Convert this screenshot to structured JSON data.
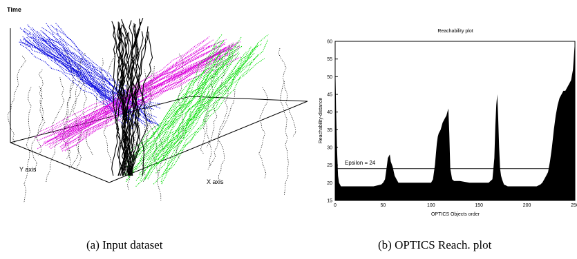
{
  "chart_data": [
    {
      "type": "line",
      "projection": "3d",
      "axis_labels": {
        "z": "Time",
        "x": "X axis",
        "y": "Y axis"
      },
      "caption": "(a) Input dataset",
      "legend": "none",
      "grid": false,
      "series": [
        {
          "color": "#0000dd",
          "style": "dotted"
        },
        {
          "color": "#dd00dd",
          "style": "dotted"
        },
        {
          "color": "#00dd00",
          "style": "dotted"
        },
        {
          "color": "#000000",
          "style": "solid"
        },
        {
          "color": "#000000",
          "style": "dotted"
        }
      ]
    },
    {
      "type": "area",
      "title": "Reachability plot",
      "xlabel": "OPTICS Objects order",
      "ylabel": "Reachability-distance",
      "xlim": [
        0,
        250
      ],
      "ylim": [
        15,
        60
      ],
      "xticks": [
        "0",
        "50",
        "100",
        "150",
        "200",
        "250"
      ],
      "yticks": [
        "15",
        "20",
        "25",
        "30",
        "35",
        "40",
        "45",
        "50",
        "55",
        "60"
      ],
      "threshold": {
        "label": "Epsilon = 24",
        "value": 24
      },
      "caption": "(b) OPTICS Reach. plot",
      "x": [
        0,
        1,
        2,
        3,
        4,
        6,
        10,
        20,
        30,
        40,
        48,
        50,
        52,
        54,
        55,
        56,
        57,
        58,
        60,
        62,
        64,
        66,
        70,
        80,
        90,
        100,
        102,
        104,
        106,
        107,
        108,
        110,
        112,
        114,
        116,
        117,
        118,
        119,
        120,
        122,
        124,
        130,
        140,
        150,
        160,
        164,
        166,
        167,
        168,
        169,
        170,
        171,
        172,
        173,
        174,
        176,
        180,
        190,
        200,
        210,
        214,
        216,
        218,
        220,
        222,
        224,
        226,
        228,
        230,
        232,
        234,
        236,
        238,
        240,
        242,
        244,
        246,
        248,
        249,
        250
      ],
      "y": [
        56,
        40,
        29,
        22,
        20,
        19,
        19,
        19,
        19,
        19,
        19.5,
        20,
        21,
        25,
        27,
        27.5,
        28,
        26,
        24.5,
        22,
        21,
        20,
        20,
        20,
        20,
        20,
        21,
        25,
        31,
        33,
        34,
        35,
        37,
        38,
        39,
        40,
        41,
        34,
        24,
        21,
        20.5,
        20.5,
        20,
        20,
        20,
        21,
        27,
        36,
        42,
        45,
        38,
        30,
        24,
        22,
        21,
        19.5,
        19,
        19,
        19,
        19,
        19.5,
        20,
        21,
        22,
        23,
        26,
        30,
        35,
        39,
        42,
        44,
        45,
        46,
        46,
        47,
        48,
        49,
        52,
        56,
        60
      ]
    }
  ]
}
